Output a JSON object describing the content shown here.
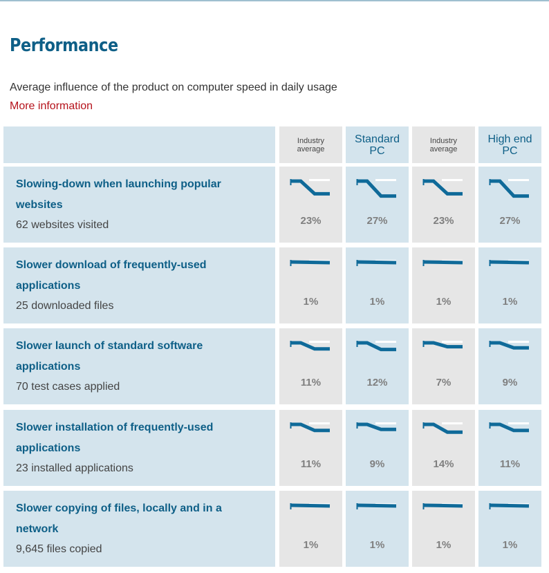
{
  "page": {
    "title": "Performance",
    "subtitle": "Average influence of the product on computer speed in daily usage",
    "more_info": "More information"
  },
  "columns": [
    {
      "label_line1": "Industry",
      "label_line2": "average",
      "style": "small"
    },
    {
      "label_line1": "Standard",
      "label_line2": "PC",
      "style": "big"
    },
    {
      "label_line1": "Industry",
      "label_line2": "average",
      "style": "small"
    },
    {
      "label_line1": "High end",
      "label_line2": "PC",
      "style": "big"
    }
  ],
  "rows": [
    {
      "title": "Slowing-down when launching popular websites",
      "subtitle": "62 websites visited",
      "values": [
        "23%",
        "27%",
        "23%",
        "27%"
      ],
      "impact": [
        23,
        27,
        23,
        27
      ]
    },
    {
      "title": "Slower download of frequently-used applications",
      "subtitle": "25 downloaded files",
      "values": [
        "1%",
        "1%",
        "1%",
        "1%"
      ],
      "impact": [
        1,
        1,
        1,
        1
      ]
    },
    {
      "title": "Slower launch of standard software applications",
      "subtitle": "70 test cases applied",
      "values": [
        "11%",
        "12%",
        "7%",
        "9%"
      ],
      "impact": [
        11,
        12,
        7,
        9
      ]
    },
    {
      "title": "Slower installation of frequently-used applications",
      "subtitle": "23 installed applications",
      "values": [
        "11%",
        "9%",
        "14%",
        "11%"
      ],
      "impact": [
        11,
        9,
        14,
        11
      ]
    },
    {
      "title": "Slower copying of files, locally and in a network",
      "subtitle": "9,645 files copied",
      "values": [
        "1%",
        "1%",
        "1%",
        "1%"
      ],
      "impact": [
        1,
        1,
        1,
        1
      ]
    }
  ],
  "colors": {
    "accent": "#0e5f87",
    "link": "#b5121b",
    "line": "#0f6a99"
  }
}
